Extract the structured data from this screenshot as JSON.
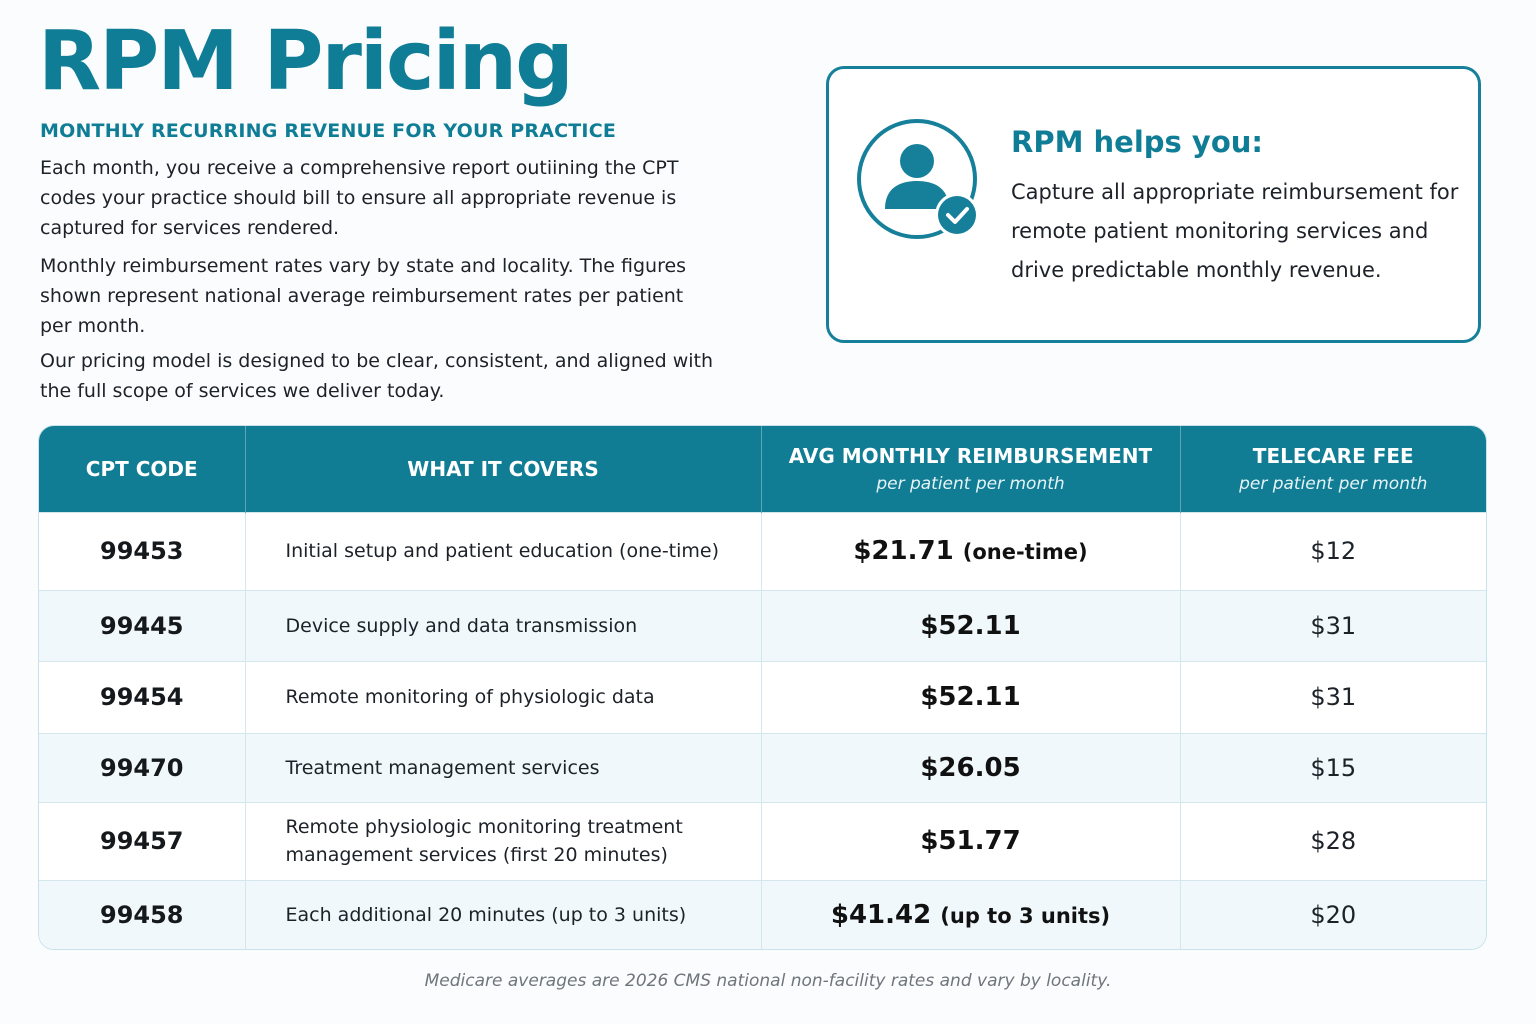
{
  "title": "RPM Pricing",
  "subtitle": "MONTHLY RECURRING REVENUE FOR YOUR PRACTICE",
  "paragraphs": [
    "Each month, you receive a comprehensive report outiining the CPT codes your practice should bill to ensure all appropriate revenue is captured for services rendered.",
    "Monthly reimbursement rates vary by state and locality. The figures shown represent national average reimbursement rates per patient per month.",
    "Our pricing model is designed to be clear, consistent, and aligned with the full scope of services we deliver today."
  ],
  "callout": {
    "title": "RPM helps you:",
    "body": "Capture all appropriate reimbursement for remote patient monitoring services and drive predictable monthly revenue.",
    "icon": "patient-check-icon",
    "accent_color": "#0f7d95"
  },
  "table": {
    "headers": {
      "code": "CPT CODE",
      "covers": "WHAT IT COVERS",
      "avg": "AVG MONTHLY REIMBURSEMENT",
      "avg_sub": "per patient per month",
      "fee": "TELECARE FEE",
      "fee_sub": "per patient per month"
    },
    "rows": [
      {
        "code": "99453",
        "desc": "Initial setup and patient education (one-time)",
        "avg": "$21.71",
        "avg_note": "(one-time)",
        "fee": "$12"
      },
      {
        "code": "99445",
        "desc": "Device supply and data transmission",
        "avg": "$52.11",
        "avg_note": "",
        "fee": "$31"
      },
      {
        "code": "99454",
        "desc": "Remote monitoring of physiologic data",
        "avg": "$52.11",
        "avg_note": "",
        "fee": "$31"
      },
      {
        "code": "99470",
        "desc": "Treatment management services",
        "avg": "$26.05",
        "avg_note": "",
        "fee": "$15"
      },
      {
        "code": "99457",
        "desc": "Remote physiologic monitoring treatment management services (first 20 minutes)",
        "avg": "$51.77",
        "avg_note": "",
        "fee": "$28"
      },
      {
        "code": "99458",
        "desc": "Each additional 20 minutes (up to 3 units)",
        "avg": "$41.42",
        "avg_note": "(up to 3 units)",
        "fee": "$20"
      }
    ]
  },
  "footnote": "Medicare averages are 2026 CMS national non-facility rates and vary by locality."
}
